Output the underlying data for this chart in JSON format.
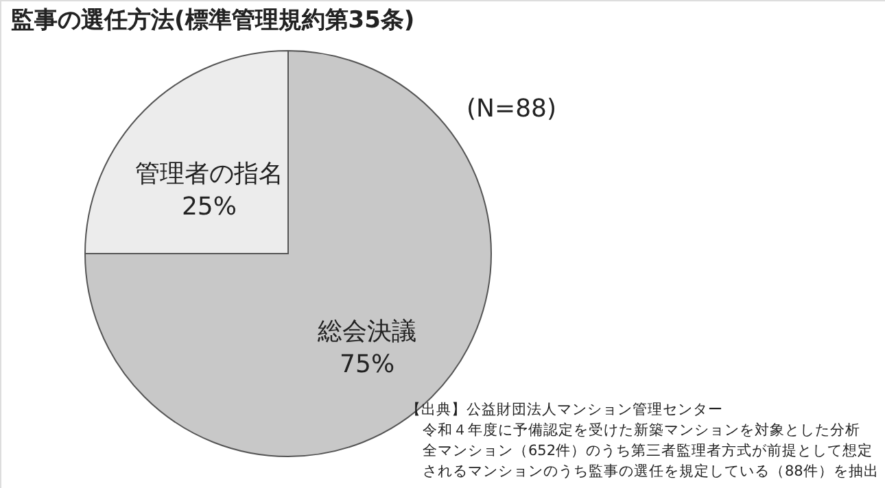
{
  "chart_data": {
    "type": "pie",
    "title": "監事の選任方法(標準管理規約第35条)",
    "categories": [
      "総会決議",
      "管理者の指名"
    ],
    "values": [
      75,
      25
    ],
    "value_labels": [
      "75%",
      "25%"
    ],
    "colors": [
      "#c8c8c8",
      "#ececec"
    ],
    "annotations": [
      "(N=88)",
      "【出典】公益財団法人マンション管理センター",
      "令和４年度に予備認定を受けた新築マンションを対象とした分析",
      "全マンション（652件）のうち第三者監理者方式が前提として想定",
      "されるマンションのうち監事の選任を規定している（88件）を抽出"
    ]
  }
}
